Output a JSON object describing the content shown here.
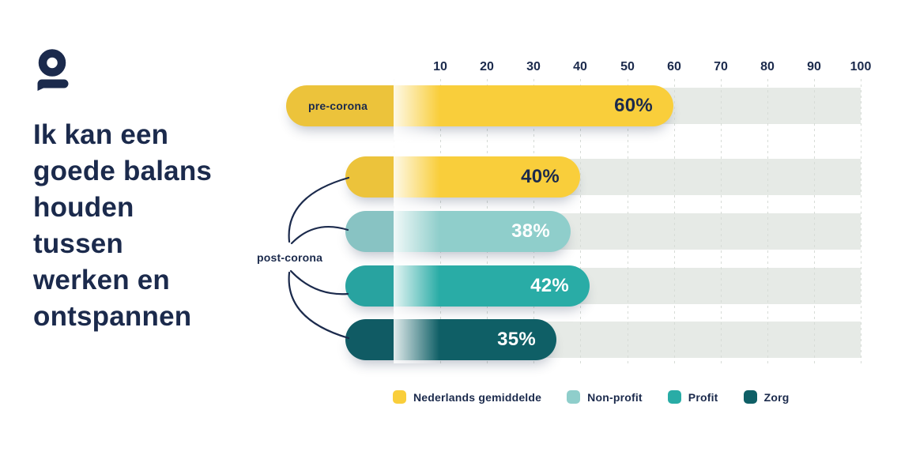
{
  "logo": {
    "name": "speech-bubble-person-logo",
    "color": "#1B2A4C"
  },
  "colors": {
    "navy": "#1B2A4C",
    "track_gray": "#E6EAE6",
    "gridline": "#D7DCD7",
    "background": "#FFFFFF"
  },
  "labels": {
    "pre_group": "pre-corona",
    "post_group": "post-corona"
  },
  "chart_data": {
    "type": "bar",
    "orientation": "horizontal",
    "title": "Ik kan een goede balans houden tussen werken en ontspannen",
    "title_lines": [
      "Ik kan een",
      "goede balans",
      "houden",
      "tussen",
      "werken en",
      "ontspannen"
    ],
    "unit": "%",
    "xlim": [
      0,
      100
    ],
    "ticks": [
      10,
      20,
      30,
      40,
      50,
      60,
      70,
      80,
      90,
      100
    ],
    "grid": true,
    "legend_position": "bottom",
    "categories": [
      "pre-corona",
      "post-corona"
    ],
    "rows": [
      {
        "group": "pre-corona",
        "series": "Nederlands gemiddelde",
        "value": 60,
        "label": "60%"
      },
      {
        "group": "post-corona",
        "series": "Nederlands gemiddelde",
        "value": 40,
        "label": "40%"
      },
      {
        "group": "post-corona",
        "series": "Non-profit",
        "value": 38,
        "label": "38%"
      },
      {
        "group": "post-corona",
        "series": "Profit",
        "value": 42,
        "label": "42%"
      },
      {
        "group": "post-corona",
        "series": "Zorg",
        "value": 35,
        "label": "35%"
      }
    ],
    "legend": [
      {
        "label": "Nederlands gemiddelde",
        "color": "#F9CE3B",
        "text_color": "#1B2A4C"
      },
      {
        "label": "Non-profit",
        "color": "#8FCECB",
        "text_color": "#FFFFFF"
      },
      {
        "label": "Profit",
        "color": "#29ACA6",
        "text_color": "#FFFFFF"
      },
      {
        "label": "Zorg",
        "color": "#0F5F66",
        "text_color": "#FFFFFF"
      }
    ]
  }
}
